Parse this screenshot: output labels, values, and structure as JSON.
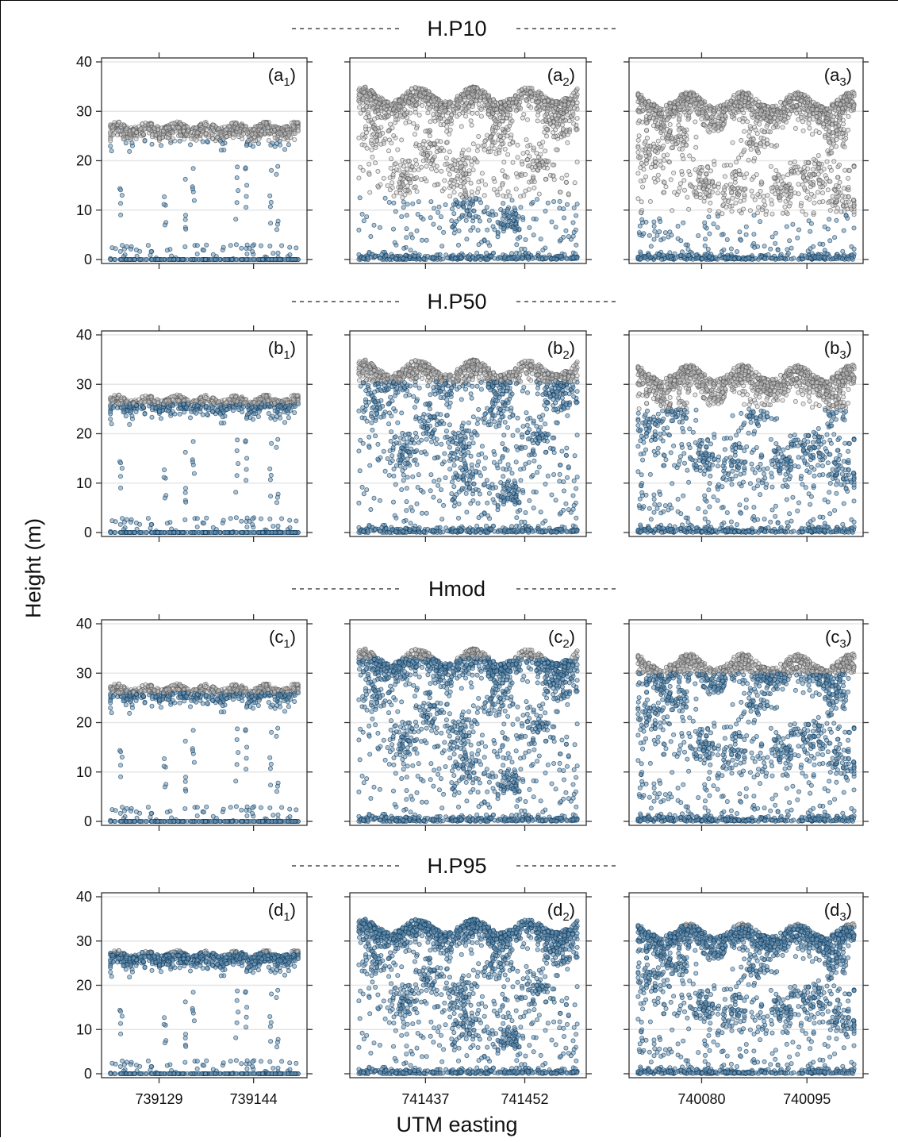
{
  "figure": {
    "ylabel": "Height (m)",
    "xlabel": "UTM easting",
    "ytick_values": [
      0,
      10,
      20,
      30,
      40
    ],
    "x_ticks": [
      [
        "739129",
        "739144"
      ],
      [
        "741437",
        "741452"
      ],
      [
        "740080",
        "740095"
      ]
    ],
    "row_titles": [
      "H.P10",
      "H.P50",
      "Hmod",
      "H.P95"
    ],
    "colors": {
      "above_threshold": "#c9c9c9",
      "above_threshold_stroke": "#555555",
      "below_threshold": "#6f97b7",
      "below_threshold_stroke": "#0e3a5c",
      "gridline": "#e6e6e6"
    }
  },
  "chart_data": {
    "type": "scatter",
    "description_of_marks": "Height of lidar returns (m) along UTM easting; grey open points lie above the metric threshold, blue points below it",
    "ylim": [
      0,
      40
    ],
    "columns": [
      {
        "panel_column": 1,
        "x_ticks": [
          "739129",
          "739144"
        ],
        "canopy_band": [
          23,
          28
        ],
        "ground": 0
      },
      {
        "panel_column": 2,
        "x_ticks": [
          "741437",
          "741452"
        ],
        "canopy_band": [
          26,
          36
        ],
        "ground": 0
      },
      {
        "panel_column": 3,
        "x_ticks": [
          "740080",
          "740095"
        ],
        "canopy_band": [
          26,
          35
        ],
        "ground": 0
      }
    ],
    "rows": [
      {
        "title": "H.P10",
        "panels": [
          {
            "label_letter": "a",
            "label_sub": "1",
            "threshold": 24
          },
          {
            "label_letter": "a",
            "label_sub": "2",
            "threshold": 12.5
          },
          {
            "label_letter": "a",
            "label_sub": "3",
            "threshold": 9
          }
        ]
      },
      {
        "title": "H.P50",
        "panels": [
          {
            "label_letter": "b",
            "label_sub": "1",
            "threshold": 26
          },
          {
            "label_letter": "b",
            "label_sub": "2",
            "threshold": 30.5
          },
          {
            "label_letter": "b",
            "label_sub": "3",
            "threshold": 25
          }
        ]
      },
      {
        "title": "Hmod",
        "panels": [
          {
            "label_letter": "c",
            "label_sub": "1",
            "threshold": 26
          },
          {
            "label_letter": "c",
            "label_sub": "2",
            "threshold": 33
          },
          {
            "label_letter": "c",
            "label_sub": "3",
            "threshold": 30
          }
        ]
      },
      {
        "title": "H.P95",
        "panels": [
          {
            "label_letter": "d",
            "label_sub": "1",
            "threshold": 27.5
          },
          {
            "label_letter": "d",
            "label_sub": "2",
            "threshold": 35
          },
          {
            "label_letter": "d",
            "label_sub": "3",
            "threshold": 33.5
          }
        ]
      }
    ]
  }
}
